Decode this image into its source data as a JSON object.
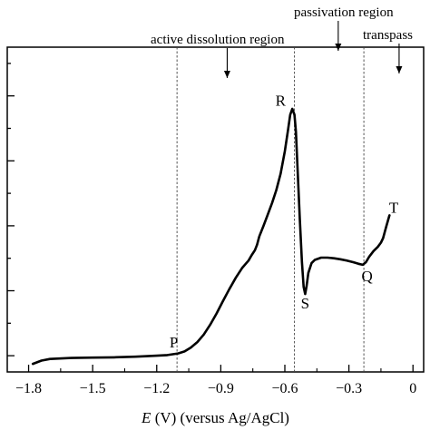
{
  "chart_data": {
    "type": "line",
    "title": "",
    "xlabel_symbol": "E",
    "xlabel_rest": " (V) (versus Ag/AgCl)",
    "ylabel": "",
    "xlim": [
      -1.9,
      0.05
    ],
    "x_ticks": [
      -1.8,
      -1.5,
      -1.2,
      -0.9,
      -0.6,
      -0.3,
      0
    ],
    "x_tick_labels": [
      "−1.8",
      "−1.5",
      "−1.2",
      "−0.9",
      "−0.6",
      "−0.3",
      "0"
    ],
    "y_range_relative": [
      0,
      1
    ],
    "grid": false,
    "series": [
      {
        "points": [
          [
            -1.78,
            0.025
          ],
          [
            -1.74,
            0.035
          ],
          [
            -1.7,
            0.04
          ],
          [
            -1.6,
            0.043
          ],
          [
            -1.5,
            0.044
          ],
          [
            -1.4,
            0.045
          ],
          [
            -1.3,
            0.047
          ],
          [
            -1.2,
            0.05
          ],
          [
            -1.15,
            0.052
          ],
          [
            -1.1,
            0.057
          ],
          [
            -1.07,
            0.063
          ],
          [
            -1.04,
            0.075
          ],
          [
            -1.01,
            0.092
          ],
          [
            -0.98,
            0.115
          ],
          [
            -0.95,
            0.145
          ],
          [
            -0.92,
            0.18
          ],
          [
            -0.89,
            0.218
          ],
          [
            -0.86,
            0.255
          ],
          [
            -0.83,
            0.29
          ],
          [
            -0.8,
            0.32
          ],
          [
            -0.77,
            0.343
          ],
          [
            -0.755,
            0.36
          ],
          [
            -0.74,
            0.375
          ],
          [
            -0.73,
            0.392
          ],
          [
            -0.72,
            0.417
          ],
          [
            -0.7,
            0.45
          ],
          [
            -0.68,
            0.485
          ],
          [
            -0.66,
            0.52
          ],
          [
            -0.64,
            0.56
          ],
          [
            -0.62,
            0.61
          ],
          [
            -0.6,
            0.68
          ],
          [
            -0.585,
            0.745
          ],
          [
            -0.575,
            0.792
          ],
          [
            -0.565,
            0.81
          ],
          [
            -0.555,
            0.792
          ],
          [
            -0.548,
            0.74
          ],
          [
            -0.54,
            0.62
          ],
          [
            -0.53,
            0.47
          ],
          [
            -0.52,
            0.34
          ],
          [
            -0.512,
            0.262
          ],
          [
            -0.505,
            0.24
          ],
          [
            -0.498,
            0.265
          ],
          [
            -0.49,
            0.305
          ],
          [
            -0.475,
            0.335
          ],
          [
            -0.46,
            0.345
          ],
          [
            -0.43,
            0.352
          ],
          [
            -0.4,
            0.352
          ],
          [
            -0.37,
            0.35
          ],
          [
            -0.34,
            0.347
          ],
          [
            -0.31,
            0.343
          ],
          [
            -0.28,
            0.338
          ],
          [
            -0.255,
            0.333
          ],
          [
            -0.235,
            0.33
          ],
          [
            -0.22,
            0.338
          ],
          [
            -0.205,
            0.355
          ],
          [
            -0.185,
            0.372
          ],
          [
            -0.165,
            0.385
          ],
          [
            -0.15,
            0.398
          ],
          [
            -0.14,
            0.412
          ],
          [
            -0.125,
            0.448
          ],
          [
            -0.11,
            0.482
          ]
        ]
      }
    ],
    "region_boundaries": [
      -1.105,
      -0.555,
      -0.23
    ],
    "region_labels": [
      {
        "text": "active dissolution region",
        "arrow_x": -0.87
      },
      {
        "text": "passivation region",
        "arrow_x": -0.35
      },
      {
        "text": "transpass",
        "arrow_x": -0.065
      }
    ],
    "point_labels": [
      {
        "text": "P",
        "x": -1.12,
        "y": 0.075
      },
      {
        "text": "R",
        "x": -0.62,
        "y": 0.82
      },
      {
        "text": "S",
        "x": -0.505,
        "y": 0.195
      },
      {
        "text": "Q",
        "x": -0.215,
        "y": 0.28
      },
      {
        "text": "T",
        "x": -0.09,
        "y": 0.49
      }
    ]
  }
}
